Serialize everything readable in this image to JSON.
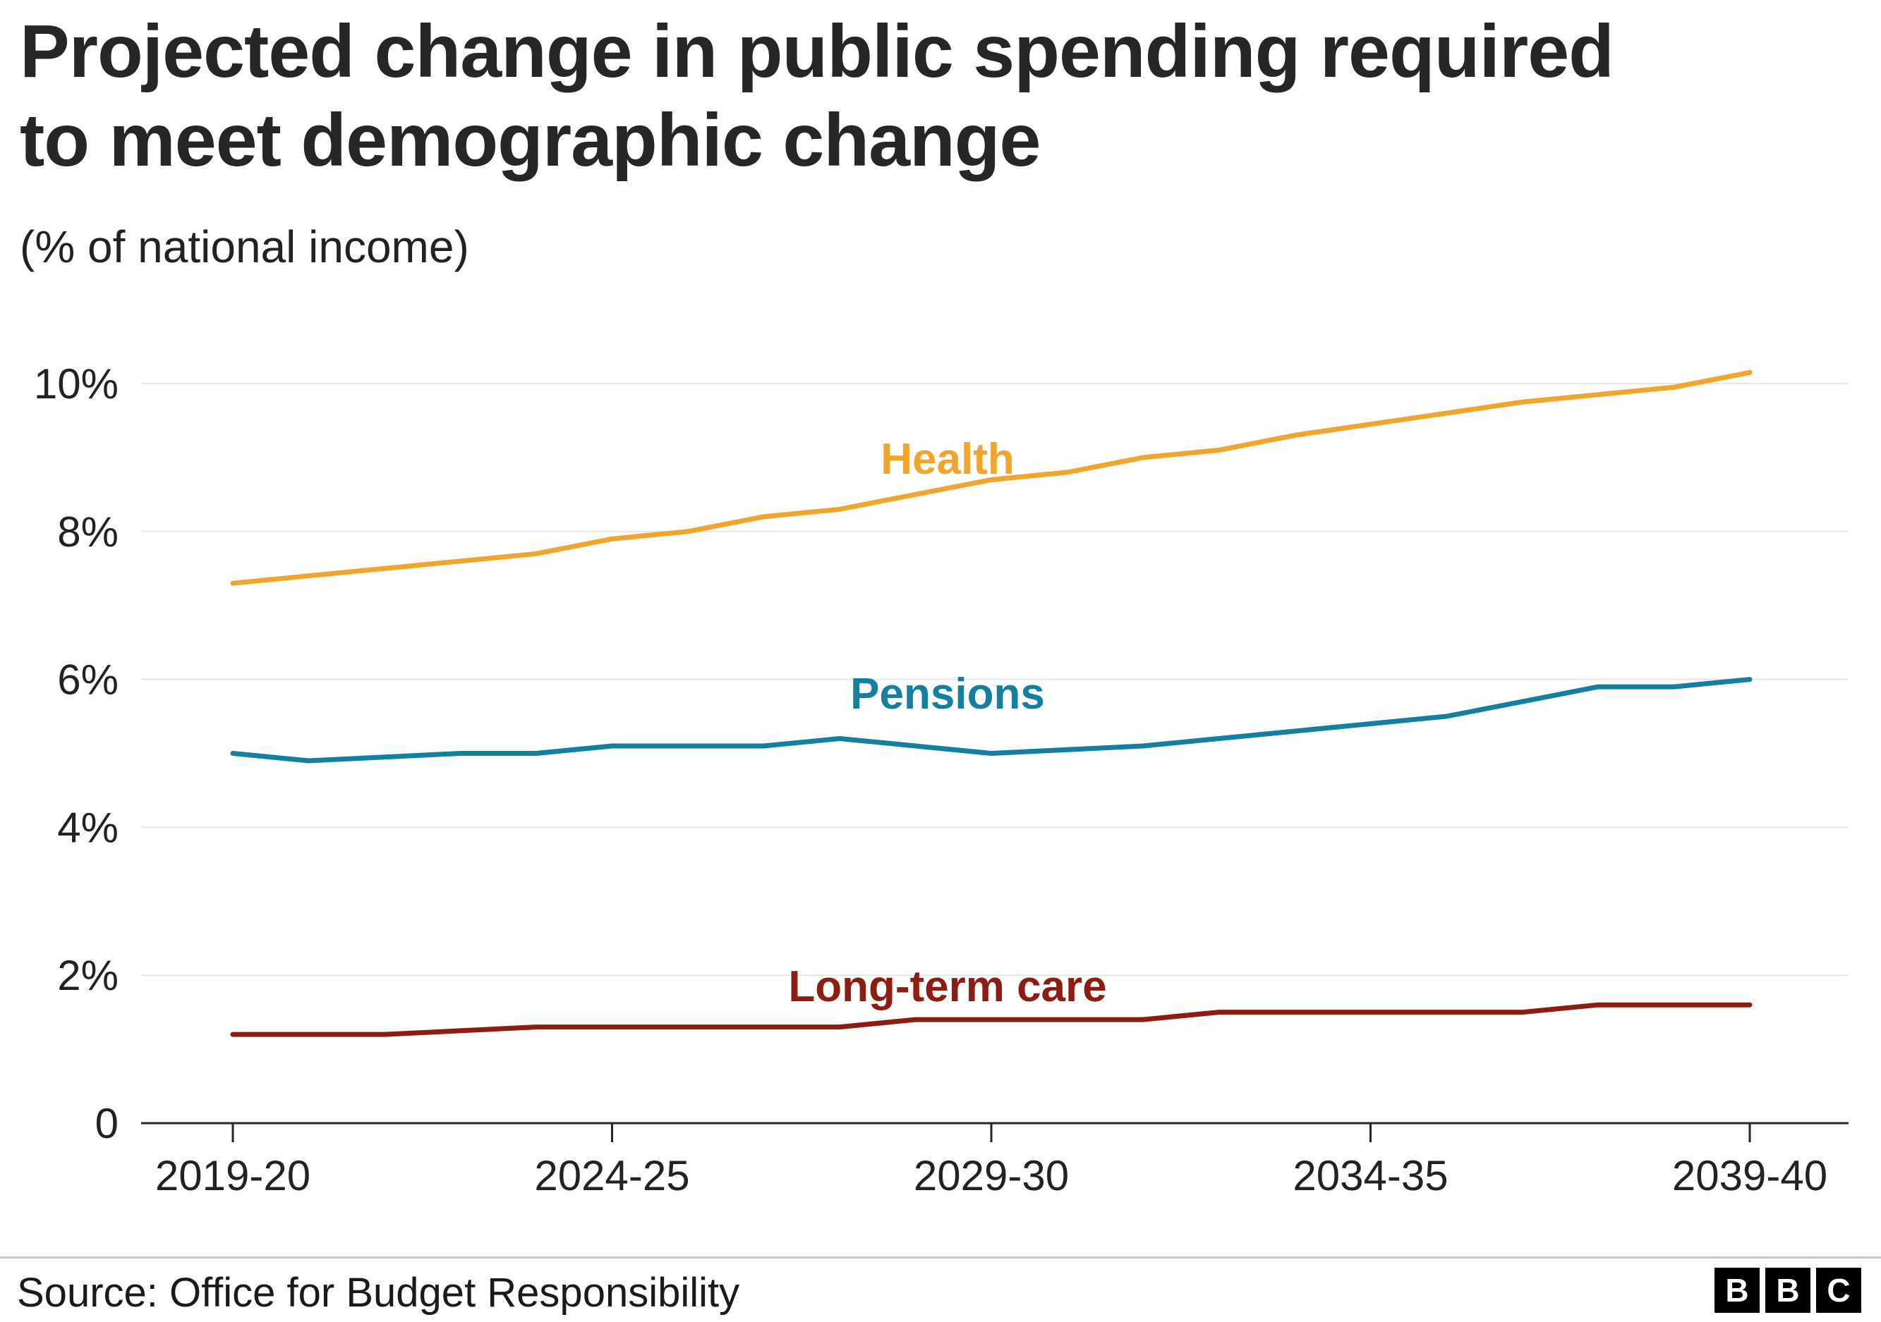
{
  "header": {
    "title": "Projected change in public spending required to meet demographic change",
    "title_lines": [
      "Projected change in public spending required",
      "to meet demographic change"
    ],
    "subtitle": "(% of national income)"
  },
  "footer": {
    "source": "Source: Office for Budget Responsibility",
    "logo_letters": [
      "B",
      "B",
      "C"
    ]
  },
  "colors": {
    "health": "#f2a52c",
    "pensions": "#1380A1",
    "long_term_care": "#8e1c13",
    "grid": "#e7e7e7",
    "axis": "#262626",
    "text": "#222222"
  },
  "chart_data": {
    "type": "line",
    "title": "Projected change in public spending required to meet demographic change",
    "subtitle": "(% of national income)",
    "xlabel": "",
    "ylabel": "% of national income",
    "ylim": [
      0,
      10.6
    ],
    "grid": "horizontal",
    "legend_position": "inline-labels",
    "categories": [
      "2019-20",
      "2020-21",
      "2021-22",
      "2022-23",
      "2023-24",
      "2024-25",
      "2025-26",
      "2026-27",
      "2027-28",
      "2028-29",
      "2029-30",
      "2030-31",
      "2031-32",
      "2032-33",
      "2033-34",
      "2034-35",
      "2035-36",
      "2036-37",
      "2037-38",
      "2038-39",
      "2039-40"
    ],
    "x_ticks_shown": [
      "2019-20",
      "2024-25",
      "2029-30",
      "2034-35",
      "2039-40"
    ],
    "x_tick_indices": [
      0,
      5,
      10,
      15,
      20
    ],
    "y_ticks": [
      {
        "value": 0,
        "label": "0"
      },
      {
        "value": 2,
        "label": "2%"
      },
      {
        "value": 4,
        "label": "4%"
      },
      {
        "value": 6,
        "label": "6%"
      },
      {
        "value": 8,
        "label": "8%"
      },
      {
        "value": 10,
        "label": "10%"
      }
    ],
    "series": [
      {
        "name": "Health",
        "color": "#f2a52c",
        "values": [
          7.3,
          7.4,
          7.5,
          7.6,
          7.7,
          7.9,
          8.0,
          8.2,
          8.3,
          8.5,
          8.7,
          8.8,
          9.0,
          9.1,
          9.3,
          9.45,
          9.6,
          9.75,
          9.85,
          9.95,
          10.15
        ]
      },
      {
        "name": "Pensions",
        "color": "#1380A1",
        "values": [
          5.0,
          4.9,
          4.95,
          5.0,
          5.0,
          5.1,
          5.1,
          5.1,
          5.2,
          5.1,
          5.0,
          5.05,
          5.1,
          5.2,
          5.3,
          5.4,
          5.5,
          5.7,
          5.9,
          5.9,
          6.0
        ]
      },
      {
        "name": "Long-term care",
        "color": "#8e1c13",
        "values": [
          1.2,
          1.2,
          1.2,
          1.25,
          1.3,
          1.3,
          1.3,
          1.3,
          1.3,
          1.4,
          1.4,
          1.4,
          1.4,
          1.5,
          1.5,
          1.5,
          1.5,
          1.5,
          1.6,
          1.6,
          1.6
        ]
      }
    ]
  }
}
